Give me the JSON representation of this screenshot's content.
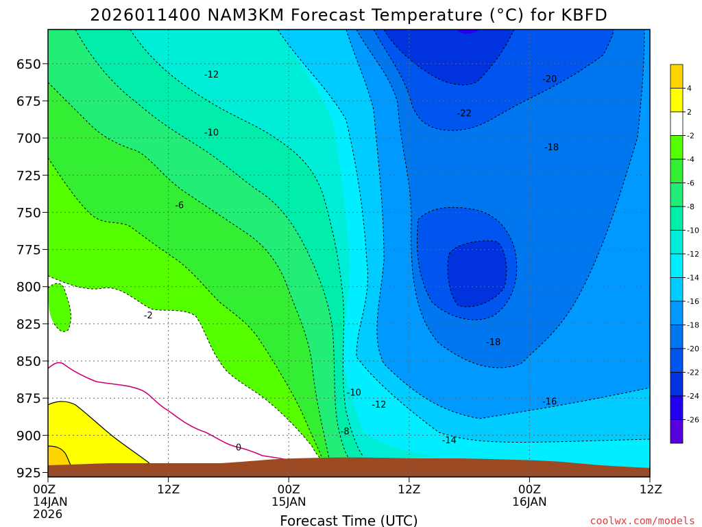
{
  "chart_data": {
    "type": "heatmap",
    "title": "2026011400 NAM3KM Forecast Temperature (°C) for KBFD",
    "xlabel": "Forecast Time (UTC)",
    "ylabel": "",
    "x_ticks": [
      {
        "hour": 0,
        "lines": [
          "00Z",
          "14JAN",
          "2026"
        ]
      },
      {
        "hour": 12,
        "lines": [
          "12Z"
        ]
      },
      {
        "hour": 24,
        "lines": [
          "00Z",
          "15JAN"
        ]
      },
      {
        "hour": 36,
        "lines": [
          "12Z"
        ]
      },
      {
        "hour": 48,
        "lines": [
          "00Z",
          "16JAN"
        ]
      },
      {
        "hour": 60,
        "lines": [
          "12Z"
        ]
      }
    ],
    "xlim": [
      0,
      60
    ],
    "ylim": [
      928,
      627
    ],
    "y_ticks": [
      650,
      675,
      700,
      725,
      750,
      775,
      800,
      825,
      850,
      875,
      900,
      925
    ],
    "grid": true,
    "colorbar": {
      "levels": [
        {
          "label": "4",
          "color": "#ffd400"
        },
        {
          "label": "2",
          "color": "#ffff00"
        },
        {
          "label": "-2",
          "color": "#ffffff"
        },
        {
          "label": "-4",
          "color": "#55ff00"
        },
        {
          "label": "-6",
          "color": "#33ee33"
        },
        {
          "label": "-8",
          "color": "#22ee77"
        },
        {
          "label": "-10",
          "color": "#00eeaa"
        },
        {
          "label": "-12",
          "color": "#00eed8"
        },
        {
          "label": "-14",
          "color": "#00eeff"
        },
        {
          "label": "-16",
          "color": "#00ccff"
        },
        {
          "label": "-18",
          "color": "#0099ff"
        },
        {
          "label": "-20",
          "color": "#0077ee"
        },
        {
          "label": "-22",
          "color": "#0055ee"
        },
        {
          "label": "-24",
          "color": "#0033dd"
        },
        {
          "label": "-26",
          "color": "#2200ee"
        },
        {
          "label": "",
          "color": "#5500dd"
        }
      ]
    },
    "contour_labels": [
      {
        "text": "-12",
        "hour": 16.3,
        "p": 657
      },
      {
        "text": "-10",
        "hour": 16.3,
        "p": 696
      },
      {
        "text": "-6",
        "hour": 13.1,
        "p": 745
      },
      {
        "text": "-2",
        "hour": 10.0,
        "p": 819
      },
      {
        "text": "0",
        "hour": 19.0,
        "p": 908
      },
      {
        "text": "-10",
        "hour": 30.5,
        "p": 871
      },
      {
        "text": "-12",
        "hour": 33.0,
        "p": 879
      },
      {
        "text": "-8",
        "hour": 29.6,
        "p": 897
      },
      {
        "text": "-14",
        "hour": 40.0,
        "p": 903
      },
      {
        "text": "-18",
        "hour": 44.4,
        "p": 837
      },
      {
        "text": "-16",
        "hour": 50.0,
        "p": 877
      },
      {
        "text": "-18",
        "hour": 50.2,
        "p": 706
      },
      {
        "text": "-20",
        "hour": 50.0,
        "p": 660
      },
      {
        "text": "-22",
        "hour": 41.5,
        "p": 683
      }
    ]
  },
  "credit": "coolwx.com/models"
}
